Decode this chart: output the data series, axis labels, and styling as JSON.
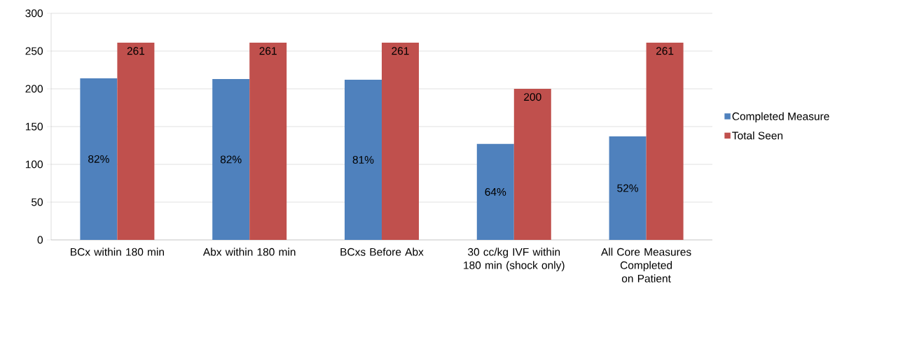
{
  "chart_data": {
    "type": "bar",
    "categories": [
      "BCx within 180 min",
      "Abx within 180 min",
      "BCxs Before Abx",
      "30 cc/kg IVF within 180 min (shock only)",
      "All Core Measures Completed on Patient"
    ],
    "series": [
      {
        "name": "Completed Measure",
        "color": "#4f81bd",
        "values": [
          214,
          213,
          212,
          127,
          137
        ]
      },
      {
        "name": "Total Seen",
        "color": "#c0504d",
        "values": [
          261,
          261,
          261,
          200,
          261
        ],
        "value_labels": [
          "261",
          "261",
          "261",
          "200",
          "261"
        ]
      }
    ],
    "annotations": [
      "82%",
      "82%",
      "81%",
      "64%",
      "52%"
    ],
    "ylim": [
      0,
      300
    ],
    "yticks": [
      0,
      50,
      100,
      150,
      200,
      250,
      300
    ],
    "grid": "y",
    "legend": "right"
  }
}
